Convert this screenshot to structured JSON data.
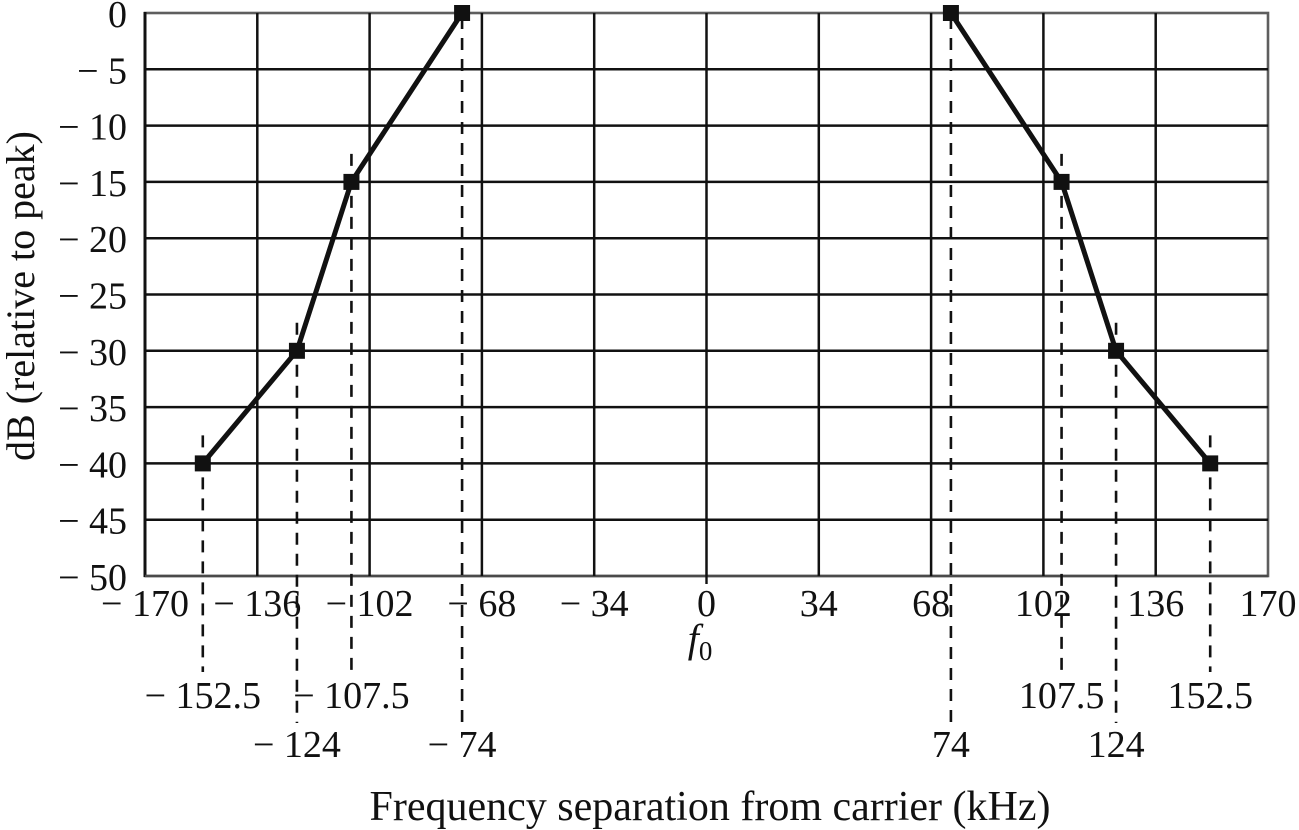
{
  "figure": {
    "background": "#ffffff",
    "ink_color": "#111111",
    "border_color": "#5e5e5e"
  },
  "y_axis": {
    "title": "dB (relative to peak)",
    "ticks": [
      {
        "value": 0,
        "label": "0"
      },
      {
        "value": -5,
        "label": "− 5"
      },
      {
        "value": -10,
        "label": "− 10"
      },
      {
        "value": -15,
        "label": "− 15"
      },
      {
        "value": -20,
        "label": "− 20"
      },
      {
        "value": -25,
        "label": "− 25"
      },
      {
        "value": -30,
        "label": "− 30"
      },
      {
        "value": -35,
        "label": "− 35"
      },
      {
        "value": -40,
        "label": "− 40"
      },
      {
        "value": -45,
        "label": "− 45"
      },
      {
        "value": -50,
        "label": "− 50"
      }
    ]
  },
  "x_axis": {
    "title": "Frequency separation from carrier (kHz)",
    "ticks": [
      {
        "value": -170,
        "label": "− 170"
      },
      {
        "value": -136,
        "label": "− 136"
      },
      {
        "value": -102,
        "label": "− 102"
      },
      {
        "value": -68,
        "label": "− 68"
      },
      {
        "value": -34,
        "label": "− 34"
      },
      {
        "value": 0,
        "label": "0"
      },
      {
        "value": 34,
        "label": "34"
      },
      {
        "value": 68,
        "label": "68"
      },
      {
        "value": 102,
        "label": "102"
      },
      {
        "value": 136,
        "label": "136"
      },
      {
        "value": 170,
        "label": "170"
      }
    ],
    "carrier_frequency_label": {
      "base": "f",
      "sub": "0"
    }
  },
  "chart_data": {
    "type": "line",
    "title": "",
    "xlabel": "Frequency separation from carrier (kHz)",
    "ylabel": "dB (relative to peak)",
    "xlim": [
      -170,
      170
    ],
    "ylim": [
      -50,
      0
    ],
    "x_tick_values": [
      -170,
      -136,
      -102,
      -68,
      -34,
      0,
      34,
      68,
      102,
      136,
      170
    ],
    "y_tick_values": [
      0,
      -5,
      -10,
      -15,
      -20,
      -25,
      -30,
      -35,
      -40,
      -45,
      -50
    ],
    "grid": true,
    "legend": "none",
    "line_color": "#111111",
    "marker": "filled-square",
    "series": [
      {
        "name": "lower-sideband-mask",
        "points": [
          {
            "x": -152.5,
            "y": -40
          },
          {
            "x": -124,
            "y": -30
          },
          {
            "x": -107.5,
            "y": -15
          },
          {
            "x": -74,
            "y": 0
          }
        ]
      },
      {
        "name": "upper-sideband-mask",
        "points": [
          {
            "x": 74,
            "y": 0
          },
          {
            "x": 107.5,
            "y": -15
          },
          {
            "x": 124,
            "y": -30
          },
          {
            "x": 152.5,
            "y": -40
          }
        ]
      }
    ],
    "annotations": [
      {
        "x": -152.5,
        "label": "− 152.5",
        "row": 1
      },
      {
        "x": -124,
        "label": "− 124",
        "row": 2
      },
      {
        "x": -107.5,
        "label": "− 107.5",
        "row": 1
      },
      {
        "x": -74,
        "label": "− 74",
        "row": 2
      },
      {
        "x": 74,
        "label": "74",
        "row": 2
      },
      {
        "x": 107.5,
        "label": "107.5",
        "row": 1
      },
      {
        "x": 124,
        "label": "124",
        "row": 2
      },
      {
        "x": 152.5,
        "label": "152.5",
        "row": 1
      }
    ]
  }
}
